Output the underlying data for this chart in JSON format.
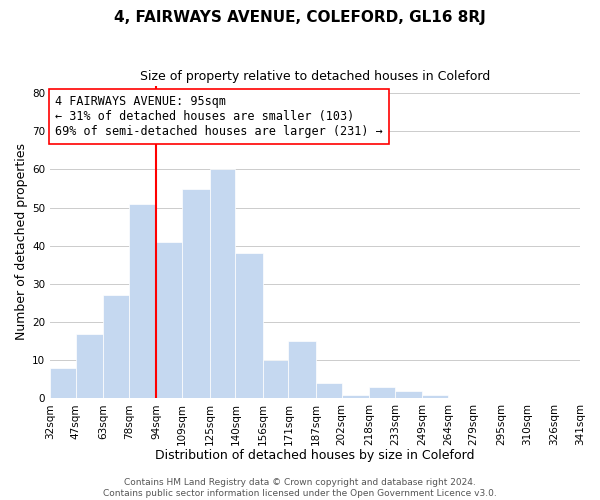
{
  "title": "4, FAIRWAYS AVENUE, COLEFORD, GL16 8RJ",
  "subtitle": "Size of property relative to detached houses in Coleford",
  "xlabel": "Distribution of detached houses by size in Coleford",
  "ylabel": "Number of detached properties",
  "bar_color": "#c5d8f0",
  "bar_edge_color": "#ffffff",
  "background_color": "#ffffff",
  "grid_color": "#cccccc",
  "red_line_x": 94,
  "annotation_line1": "4 FAIRWAYS AVENUE: 95sqm",
  "annotation_line2": "← 31% of detached houses are smaller (103)",
  "annotation_line3": "69% of semi-detached houses are larger (231) →",
  "annotation_fontsize": 8.5,
  "bin_edges": [
    32,
    47,
    63,
    78,
    94,
    109,
    125,
    140,
    156,
    171,
    187,
    202,
    218,
    233,
    249,
    264,
    279,
    295,
    310,
    326,
    341
  ],
  "bar_heights": [
    8,
    17,
    27,
    51,
    41,
    55,
    60,
    38,
    10,
    15,
    4,
    1,
    3,
    2,
    1,
    0,
    0,
    0,
    0,
    0
  ],
  "ylim": [
    0,
    82
  ],
  "yticks": [
    0,
    10,
    20,
    30,
    40,
    50,
    60,
    70,
    80
  ],
  "footer_line1": "Contains HM Land Registry data © Crown copyright and database right 2024.",
  "footer_line2": "Contains public sector information licensed under the Open Government Licence v3.0.",
  "title_fontsize": 11,
  "subtitle_fontsize": 9,
  "xlabel_fontsize": 9,
  "ylabel_fontsize": 9,
  "tick_fontsize": 7.5,
  "footer_fontsize": 6.5
}
